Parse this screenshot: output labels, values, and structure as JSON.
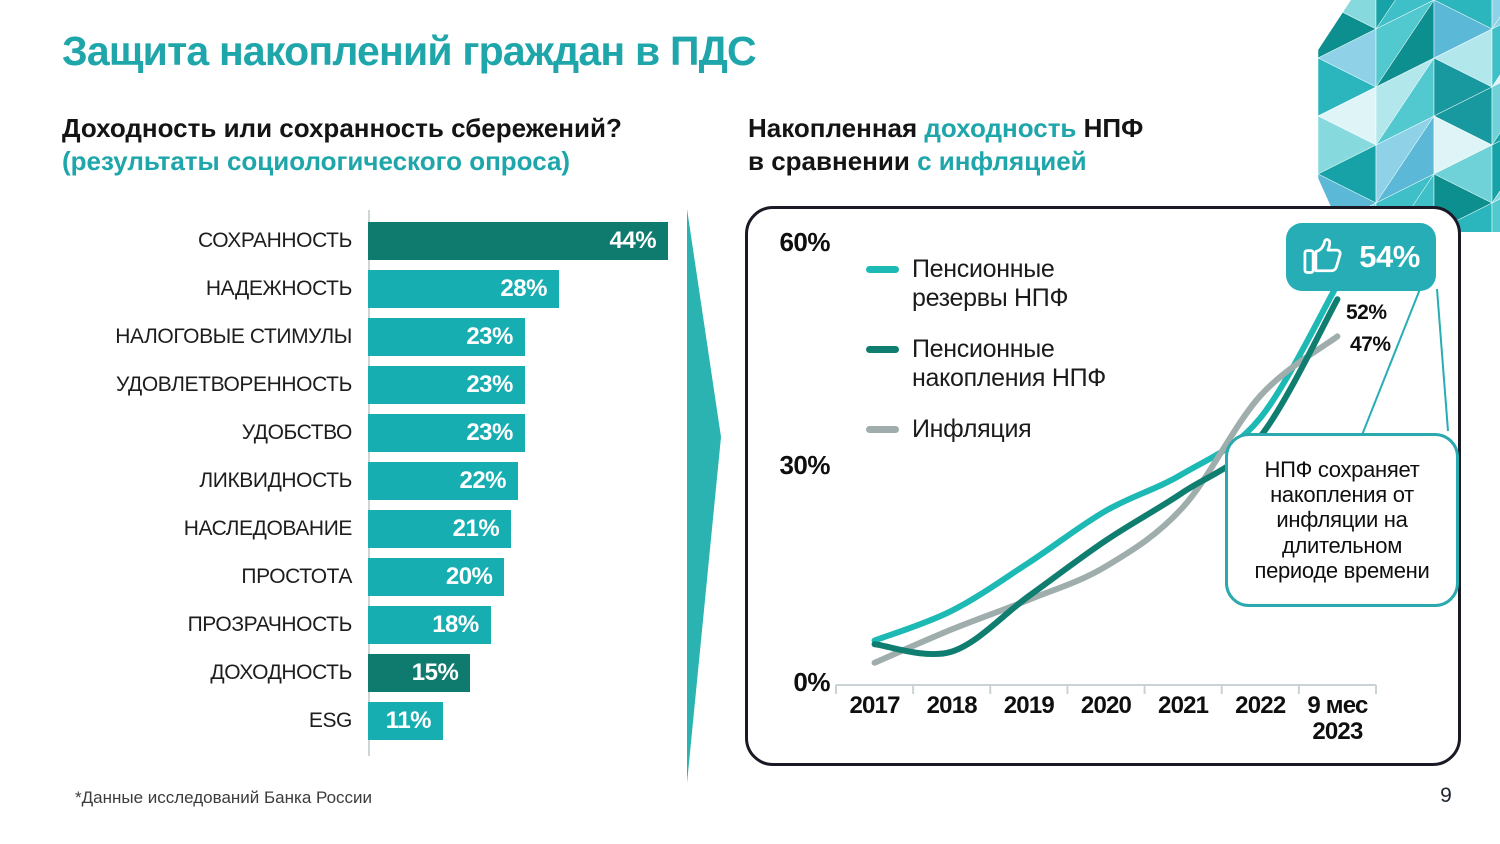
{
  "slide": {
    "title": "Защита накоплений граждан в ПДС",
    "footnote": "*Данные исследований Банка России",
    "page_number": "9"
  },
  "survey_chart": {
    "title": "Доходность или сохранность сбережений?",
    "subtitle": "(результаты социологического опроса)"
  },
  "returns_chart": {
    "title": {
      "seg1": "Накопленная ",
      "seg2": "доходность",
      "seg3": " НПФ",
      "seg4": "в сравнении ",
      "seg5": "с инфляцией"
    },
    "y_ticks": [
      "60%",
      "30%",
      "0%"
    ],
    "x_display": [
      "2017",
      "2018",
      "2019",
      "2020",
      "2021",
      "2022",
      "9 мес\n2023"
    ],
    "badge": {
      "value": "54%",
      "icon": "thumbs-up-icon"
    },
    "callout": "НПФ сохраняет накопления от инфляции на длительном периоде времени"
  },
  "chart_data": [
    {
      "type": "bar",
      "orientation": "horizontal",
      "title": "Доходность или сохранность сбережений? (результаты социологического опроса)",
      "categories": [
        "СОХРАННОСТЬ",
        "НАДЕЖНОСТЬ",
        "НАЛОГОВЫЕ СТИМУЛЫ",
        "УДОВЛЕТВОРЕННОСТЬ",
        "УДОБСТВО",
        "ЛИКВИДНОСТЬ",
        "НАСЛЕДОВАНИЕ",
        "ПРОСТОТА",
        "ПРОЗРАЧНОСТЬ",
        "ДОХОДНОСТЬ",
        "ESG"
      ],
      "values": [
        44,
        28,
        23,
        23,
        23,
        22,
        21,
        20,
        18,
        15,
        11
      ],
      "unit": "%",
      "highlighted_categories": [
        "СОХРАННОСТЬ",
        "ДОХОДНОСТЬ"
      ],
      "bar_color": "#17aeb2",
      "highlight_color": "#0e7b6e",
      "xlim": [
        0,
        48
      ]
    },
    {
      "type": "line",
      "title": "Накопленная доходность НПФ в сравнении с инфляцией",
      "x": [
        "2017",
        "2018",
        "2019",
        "2020",
        "2021",
        "2022",
        "9 мес 2023"
      ],
      "series": [
        {
          "name": "Пенсионные резервы НПФ",
          "color": "#1db9b4",
          "values": [
            6,
            10,
            16.5,
            23.5,
            28.5,
            36,
            54
          ],
          "end_label": "54%"
        },
        {
          "name": "Пенсионные накопления НПФ",
          "color": "#0f7d6f",
          "values": [
            5.5,
            4.5,
            12,
            19.5,
            26,
            33.5,
            52
          ],
          "end_label": "52%"
        },
        {
          "name": "Инфляция",
          "color": "#9fadac",
          "values": [
            3,
            7.5,
            11.5,
            16,
            24,
            39,
            47
          ],
          "end_label": "47%"
        }
      ],
      "ylim": [
        0,
        60
      ],
      "y_ticks": [
        "0%",
        "30%",
        "60%"
      ],
      "grid": false,
      "legend_position": "top-left",
      "annotation": "НПФ сохраняет накопления от инфляции на длительном периоде времени"
    }
  ]
}
